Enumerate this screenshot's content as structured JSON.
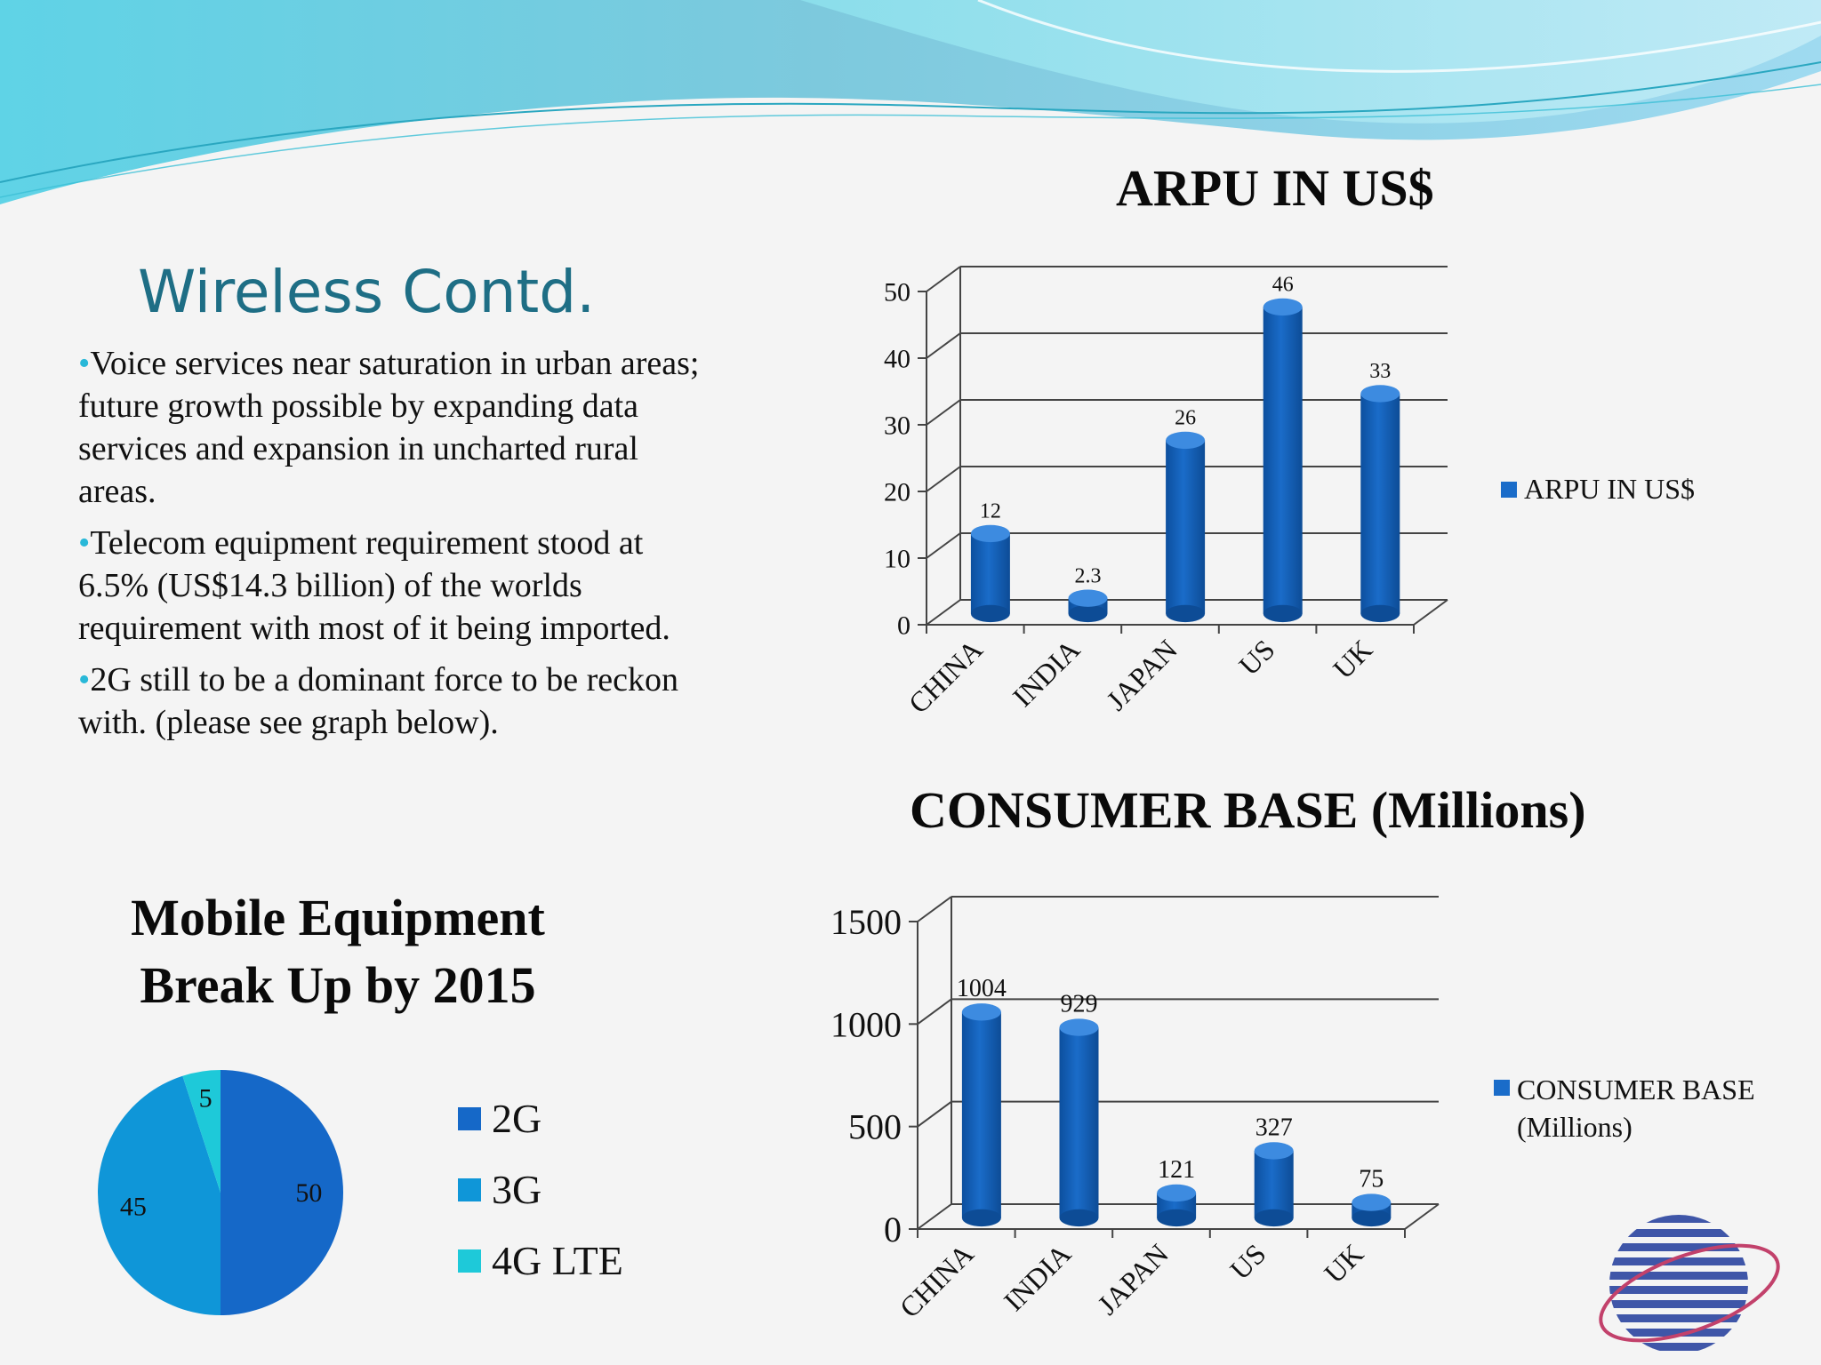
{
  "slide": {
    "title": "Wireless Contd.",
    "bullets": [
      "Voice services near saturation in urban areas; future growth possible by expanding data services and expansion in uncharted rural areas.",
      "Telecom equipment requirement stood at  6.5% (US$14.3 billion) of the worlds requirement with most of it being imported.",
      "2G still to be a dominant force to be reckon with. (please see graph below)."
    ]
  },
  "colors": {
    "bar": "#1a6cc9",
    "pie_2g": "#1568c8",
    "pie_3g": "#0f96d8",
    "pie_4g": "#1ec9d9",
    "title": "#1e6e85",
    "bullet_dot": "#29b8d8"
  },
  "chart_data": [
    {
      "type": "bar",
      "title": "ARPU IN US$",
      "categories": [
        "CHINA",
        "INDIA",
        "JAPAN",
        "US",
        "UK"
      ],
      "series": [
        {
          "name": "ARPU IN US$",
          "values": [
            12,
            2.3,
            26,
            46,
            33
          ]
        }
      ],
      "data_labels": [
        "12",
        "2.3",
        "26",
        "46",
        "33"
      ],
      "yticks": [
        "0",
        "10",
        "20",
        "30",
        "40",
        "50"
      ],
      "ylim": [
        0,
        50
      ],
      "legend_position": "right",
      "grid": true
    },
    {
      "type": "bar",
      "title": "CONSUMER BASE (Millions)",
      "categories": [
        "CHINA",
        "INDIA",
        "JAPAN",
        "US",
        "UK"
      ],
      "series": [
        {
          "name": "CONSUMER BASE (Millions)",
          "values": [
            1004,
            929,
            121,
            327,
            75
          ]
        }
      ],
      "data_labels": [
        "1004",
        "929",
        "121",
        "327",
        "75"
      ],
      "yticks": [
        "0",
        "500",
        "1000",
        "1500"
      ],
      "ylim": [
        0,
        1500
      ],
      "legend_position": "right",
      "grid": true
    },
    {
      "type": "pie",
      "title": "Mobile Equipment Break Up by 2015",
      "categories": [
        "2G",
        "3G",
        "4G LTE"
      ],
      "values": [
        50,
        45,
        5
      ],
      "data_labels": [
        "50",
        "45",
        "5"
      ],
      "legend_position": "right"
    }
  ]
}
